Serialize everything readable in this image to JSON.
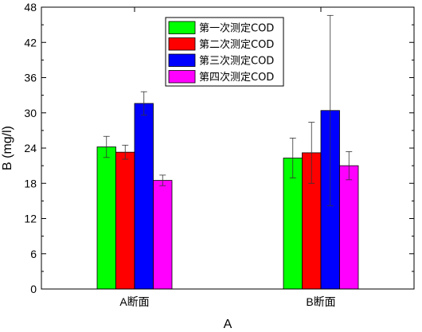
{
  "chart_data": {
    "type": "bar",
    "xlabel": "A",
    "ylabel": "B (mg/l)",
    "ylim": [
      0,
      48
    ],
    "yticks": [
      0,
      6,
      12,
      18,
      24,
      30,
      36,
      42,
      48
    ],
    "categories": [
      "A断面",
      "B断面"
    ],
    "series": [
      {
        "name": "第一次测定COD",
        "color": "#00ff00",
        "values": [
          24.2,
          22.3
        ],
        "errors": [
          1.8,
          3.4
        ]
      },
      {
        "name": "第二次测定COD",
        "color": "#ff0000",
        "values": [
          23.3,
          23.2
        ],
        "errors": [
          1.2,
          5.2
        ]
      },
      {
        "name": "第三次测定COD",
        "color": "#0000ff",
        "values": [
          31.6,
          30.4
        ],
        "errors": [
          2.0,
          16.2
        ]
      },
      {
        "name": "第四次测定COD",
        "color": "#ff00ff",
        "values": [
          18.5,
          21.0
        ],
        "errors": [
          0.9,
          2.4
        ]
      }
    ],
    "legend_position": "top-center",
    "grid": false
  }
}
